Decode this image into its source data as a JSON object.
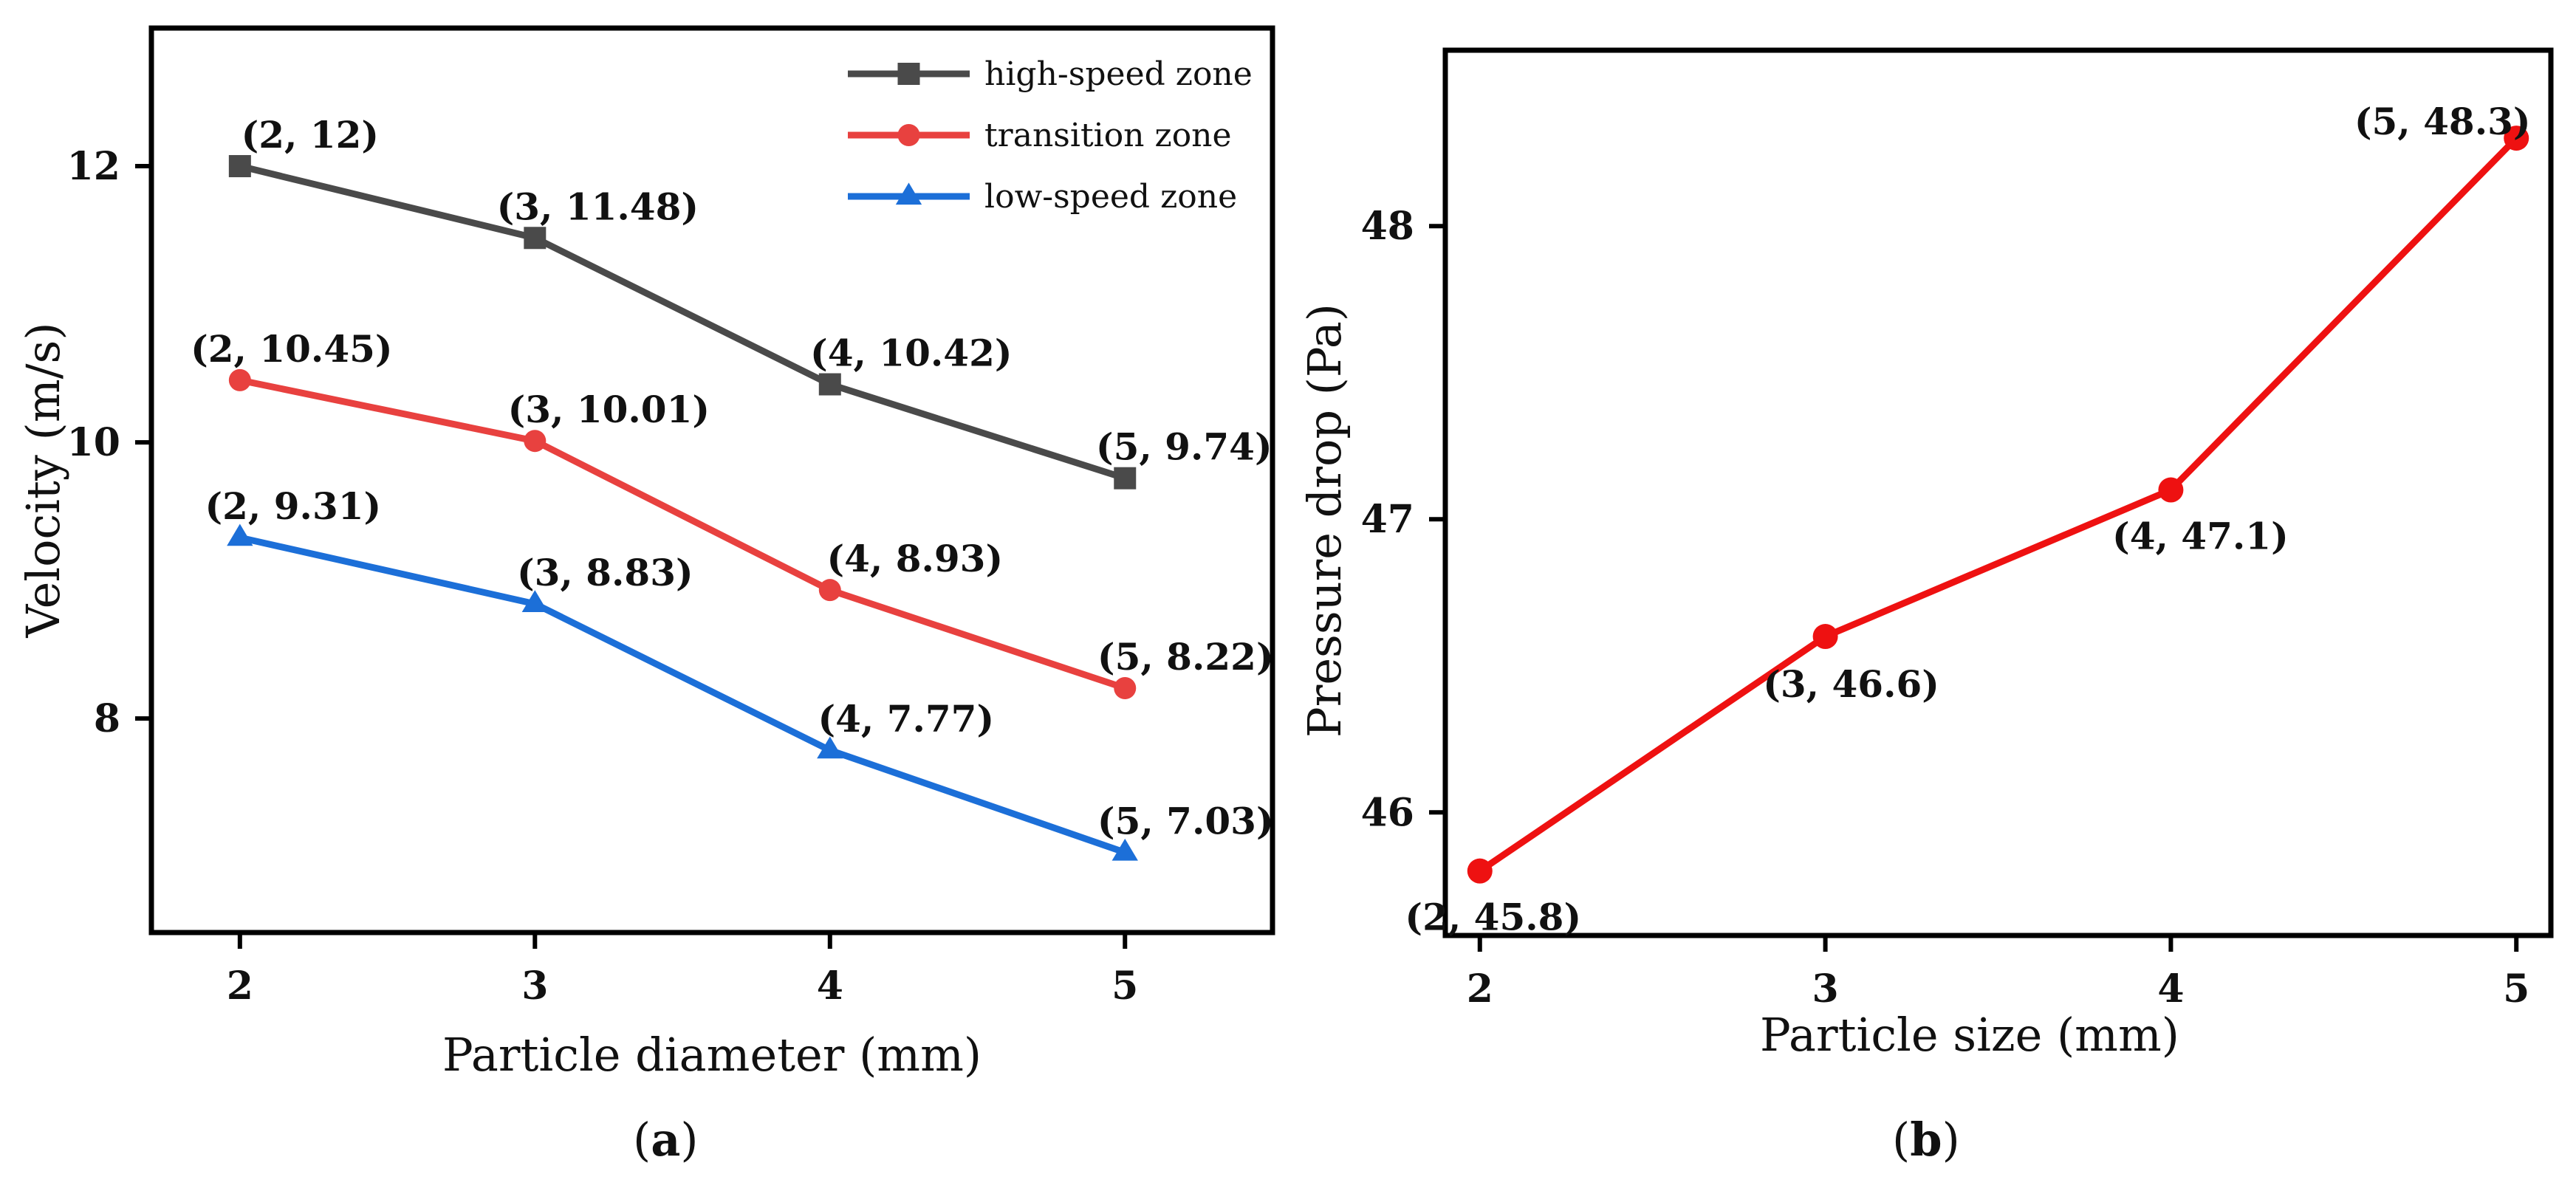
{
  "chart_data": [
    {
      "panel": "a",
      "caption": "(a)",
      "caption_letter": "a",
      "type": "line",
      "xlabel": "Particle diameter (mm)",
      "ylabel": "Velocity (m/s)",
      "xlim": [
        1.7,
        5.5
      ],
      "ylim": [
        6.45,
        13.0
      ],
      "xticks": [
        2,
        3,
        4,
        5
      ],
      "yticks": [
        8,
        10,
        12
      ],
      "grid": false,
      "legend_position": "top-right",
      "series": [
        {
          "name": "high-speed zone",
          "color": "#4a4a4a",
          "marker": "square",
          "x": [
            2,
            3,
            4,
            5
          ],
          "y": [
            12,
            11.48,
            10.42,
            9.74
          ],
          "labels": [
            "(2, 12)",
            "(3, 11.48)",
            "(4, 10.42)",
            "(5, 9.74)"
          ]
        },
        {
          "name": "transition zone",
          "color": "#e8413f",
          "marker": "circle",
          "x": [
            2,
            3,
            4,
            5
          ],
          "y": [
            10.45,
            10.01,
            8.93,
            8.22
          ],
          "labels": [
            "(2, 10.45)",
            "(3, 10.01)",
            "(4, 8.93)",
            "(5, 8.22)"
          ]
        },
        {
          "name": "low-speed zone",
          "color": "#1c6fd8",
          "marker": "triangle",
          "x": [
            2,
            3,
            4,
            5
          ],
          "y": [
            9.31,
            8.83,
            7.77,
            7.03
          ],
          "labels": [
            "(2, 9.31)",
            "(3, 8.83)",
            "(4, 7.77)",
            "(5, 7.03)"
          ]
        }
      ]
    },
    {
      "panel": "b",
      "caption": "(b)",
      "caption_letter": "b",
      "type": "line",
      "xlabel": "Particle size (mm)",
      "ylabel": "Pressure drop (Pa)",
      "xlim": [
        1.9,
        5.1
      ],
      "ylim": [
        45.58,
        48.6
      ],
      "xticks": [
        2,
        3,
        4,
        5
      ],
      "yticks": [
        46,
        47,
        48
      ],
      "grid": false,
      "series": [
        {
          "name": "pressure drop",
          "color": "#ee1111",
          "marker": "circle",
          "x": [
            2,
            3,
            4,
            5
          ],
          "y": [
            45.8,
            46.6,
            47.1,
            48.3
          ],
          "labels": [
            "(2, 45.8)",
            "(3, 46.6)",
            "(4, 47.1)",
            "(5, 48.3)"
          ]
        }
      ]
    }
  ]
}
